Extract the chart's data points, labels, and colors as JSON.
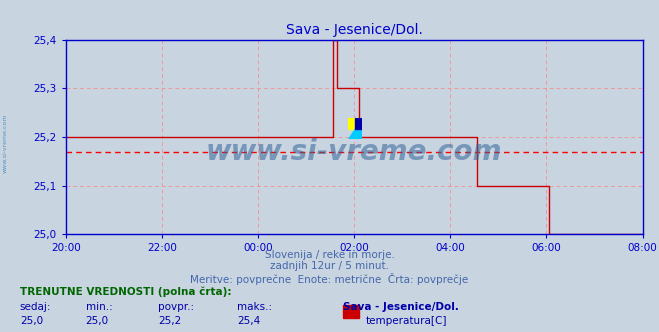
{
  "title": "Sava - Jesenice/Dol.",
  "title_color": "#0000cc",
  "bg_color": "#c8d4e0",
  "plot_bg_color": "#c8d4e0",
  "line_color": "#cc0000",
  "avg_line_color": "#ff0000",
  "avg_value": 25.17,
  "grid_color": "#ee9999",
  "axis_color": "#0000cc",
  "ylim": [
    25.0,
    25.4
  ],
  "yticks": [
    25.0,
    25.1,
    25.2,
    25.3,
    25.4
  ],
  "xlim_hours": [
    20.0,
    32.0
  ],
  "xtick_hours": [
    20.0,
    22.0,
    24.0,
    26.0,
    28.0,
    30.0,
    32.0
  ],
  "xtick_labels": [
    "20:00",
    "22:00",
    "00:00",
    "02:00",
    "04:00",
    "06:00",
    "08:00"
  ],
  "time_values": [
    20.0,
    21.0,
    22.0,
    23.0,
    24.0,
    25.0,
    25.5,
    25.55,
    25.6,
    25.65,
    26.05,
    26.1,
    26.5,
    26.55,
    27.0,
    27.05,
    28.0,
    28.05,
    28.5,
    28.55,
    29.5,
    29.55,
    30.0,
    30.05,
    30.5,
    30.55,
    30.6,
    30.65,
    31.0,
    31.5,
    32.0
  ],
  "temp_values": [
    25.2,
    25.2,
    25.2,
    25.2,
    25.2,
    25.2,
    25.2,
    25.4,
    25.4,
    25.3,
    25.3,
    25.2,
    25.2,
    25.2,
    25.2,
    25.2,
    25.2,
    25.2,
    25.2,
    25.1,
    25.1,
    25.1,
    25.1,
    25.0,
    25.0,
    25.0,
    25.0,
    25.0,
    25.0,
    25.0,
    25.0
  ],
  "subtitle1": "Slovenija / reke in morje.",
  "subtitle2": "zadnjih 12ur / 5 minut.",
  "subtitle3": "Meritve: povprečne  Enote: metrične  Črta: povprečje",
  "subtitle_color": "#4466aa",
  "footer_header": "TRENUTNE VREDNOSTI (polna črta):",
  "footer_header_color": "#006600",
  "label_sedaj": "sedaj:",
  "label_min": "min.:",
  "label_povpr": "povpr.:",
  "label_maks": "maks.:",
  "val_sedaj": "25,0",
  "val_min": "25,0",
  "val_povpr": "25,2",
  "val_maks": "25,4",
  "station_name": "Sava - Jesenice/Dol.",
  "sensor_label": "temperatura[C]",
  "sensor_color": "#cc0000",
  "watermark_text": "www.si-vreme.com",
  "watermark_color": "#336699",
  "left_text": "www.si-vreme.com",
  "left_text_color": "#4488bb"
}
